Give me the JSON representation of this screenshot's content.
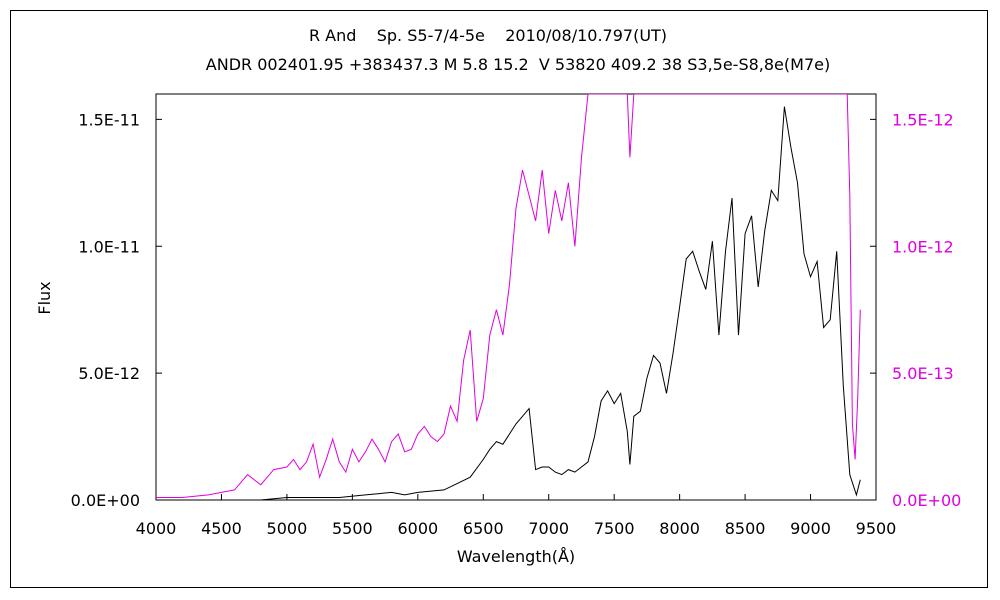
{
  "chart_data": {
    "type": "line",
    "title": "R And    Sp. S5-7/4-5e    2010/08/10.797(UT)",
    "subtitle": "ANDR 002401.95 +383437.3 M 5.8 15.2  V 53820 409.2 38 S3,5e-S8,8e(M7e)",
    "xlabel": "Wavelength(Å)",
    "ylabel": "Flux",
    "xlim": [
      4000,
      9500
    ],
    "ylim_left": [
      0,
      1.6e-11
    ],
    "ylim_right": [
      0,
      1.6e-12
    ],
    "x_ticks": [
      "4000",
      "4500",
      "5000",
      "5500",
      "6000",
      "6500",
      "7000",
      "7500",
      "8000",
      "8500",
      "9000",
      "9500"
    ],
    "y_ticks_left": [
      "0.0E+00",
      "5.0E-12",
      "1.0E-11",
      "1.5E-11"
    ],
    "y_ticks_right": [
      "0.0E+00",
      "5.0E-13",
      "1.0E-12",
      "1.5E-12"
    ],
    "grid": false,
    "series": [
      {
        "axis": "left",
        "color": "#000000",
        "x": [
          4000,
          4500,
          4800,
          5000,
          5200,
          5400,
          5600,
          5800,
          5900,
          6000,
          6200,
          6400,
          6500,
          6550,
          6600,
          6650,
          6700,
          6750,
          6800,
          6850,
          6900,
          6950,
          7000,
          7050,
          7100,
          7150,
          7200,
          7250,
          7300,
          7350,
          7400,
          7450,
          7500,
          7550,
          7600,
          7620,
          7650,
          7700,
          7750,
          7800,
          7850,
          7900,
          7950,
          8000,
          8050,
          8100,
          8150,
          8200,
          8250,
          8300,
          8350,
          8400,
          8450,
          8500,
          8550,
          8600,
          8650,
          8700,
          8750,
          8800,
          8850,
          8900,
          8950,
          9000,
          9050,
          9100,
          9150,
          9200,
          9250,
          9300,
          9350,
          9380
        ],
        "values": [
          0,
          0,
          0,
          1e-13,
          1e-13,
          1e-13,
          2e-13,
          3e-13,
          2e-13,
          3e-13,
          4e-13,
          9e-13,
          1.6e-12,
          2e-12,
          2.3e-12,
          2.2e-12,
          2.6e-12,
          3e-12,
          3.3e-12,
          3.6e-12,
          1.2e-12,
          1.3e-12,
          1.3e-12,
          1.1e-12,
          1e-12,
          1.2e-12,
          1.1e-12,
          1.3e-12,
          1.5e-12,
          2.5e-12,
          3.9e-12,
          4.3e-12,
          3.8e-12,
          4.2e-12,
          2.7e-12,
          1.4e-12,
          3.3e-12,
          3.5e-12,
          4.8e-12,
          5.7e-12,
          5.4e-12,
          4.2e-12,
          5.8e-12,
          7.6e-12,
          9.5e-12,
          9.8e-12,
          9e-12,
          8.3e-12,
          1.02e-11,
          6.5e-12,
          9.8e-12,
          1.19e-11,
          6.5e-12,
          1.05e-11,
          1.12e-11,
          8.4e-12,
          1.06e-11,
          1.22e-11,
          1.18e-11,
          1.55e-11,
          1.39e-11,
          1.25e-11,
          9.7e-12,
          8.8e-12,
          9.4e-12,
          6.8e-12,
          7.1e-12,
          9.8e-12,
          4.5e-12,
          1e-12,
          2e-13,
          8e-13
        ]
      },
      {
        "axis": "right",
        "color": "#e000e0",
        "x": [
          4000,
          4200,
          4400,
          4500,
          4600,
          4700,
          4800,
          4900,
          5000,
          5050,
          5100,
          5150,
          5200,
          5250,
          5300,
          5350,
          5400,
          5450,
          5500,
          5550,
          5600,
          5650,
          5700,
          5750,
          5800,
          5850,
          5900,
          5950,
          6000,
          6050,
          6100,
          6150,
          6200,
          6250,
          6300,
          6350,
          6400,
          6450,
          6500,
          6550,
          6600,
          6650,
          6700,
          6750,
          6800,
          6850,
          6900,
          6950,
          7000,
          7050,
          7100,
          7150,
          7200,
          7250,
          7300,
          7350,
          7400,
          7600,
          7620,
          7650,
          9280,
          9300,
          9320,
          9340,
          9360,
          9380
        ],
        "values": [
          1e-14,
          1e-14,
          2e-14,
          3e-14,
          4e-14,
          1e-13,
          6e-14,
          1.2e-13,
          1.3e-13,
          1.6e-13,
          1.2e-13,
          1.5e-13,
          2.2e-13,
          9e-14,
          1.6e-13,
          2.4e-13,
          1.5e-13,
          1.1e-13,
          2e-13,
          1.5e-13,
          1.9e-13,
          2.4e-13,
          2e-13,
          1.5e-13,
          2.3e-13,
          2.6e-13,
          1.9e-13,
          2e-13,
          2.6e-13,
          2.9e-13,
          2.5e-13,
          2.3e-13,
          2.6e-13,
          3.7e-13,
          3.1e-13,
          5.5e-13,
          6.7e-13,
          3.1e-13,
          4e-13,
          6.5e-13,
          7.5e-13,
          6.5e-13,
          8.5e-13,
          1.15e-12,
          1.3e-12,
          1.2e-12,
          1.1e-12,
          1.3e-12,
          1.05e-12,
          1.22e-12,
          1.1e-12,
          1.25e-12,
          1e-12,
          1.35e-12,
          1.6e-12,
          1.6e-12,
          1.6e-12,
          1.6e-12,
          1.35e-12,
          1.6e-12,
          1.6e-12,
          1.2e-12,
          3e-13,
          1.6e-13,
          4e-13,
          7.5e-13
        ]
      }
    ]
  }
}
